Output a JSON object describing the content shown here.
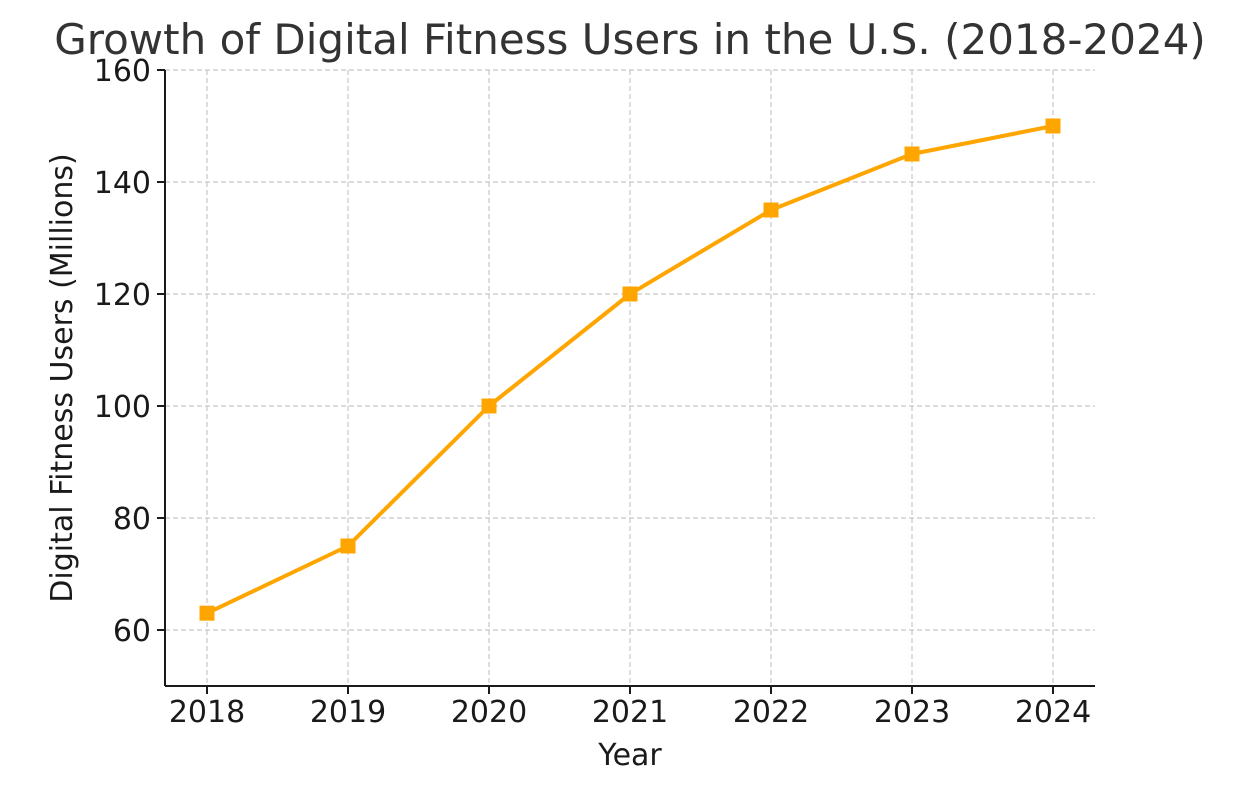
{
  "chart_data": {
    "type": "line",
    "title": "Growth of Digital Fitness Users in the U.S. (2018-2024)",
    "xlabel": "Year",
    "ylabel": "Digital Fitness Users (Millions)",
    "categories": [
      "2018",
      "2019",
      "2020",
      "2021",
      "2022",
      "2023",
      "2024"
    ],
    "series": [
      {
        "values": [
          63,
          75,
          100,
          120,
          135,
          145,
          150
        ],
        "color": "#ffa500",
        "marker": "square"
      }
    ],
    "yticks": [
      60,
      80,
      100,
      120,
      140,
      160
    ],
    "ylim": [
      50,
      160
    ],
    "grid": true,
    "legend": "none"
  }
}
